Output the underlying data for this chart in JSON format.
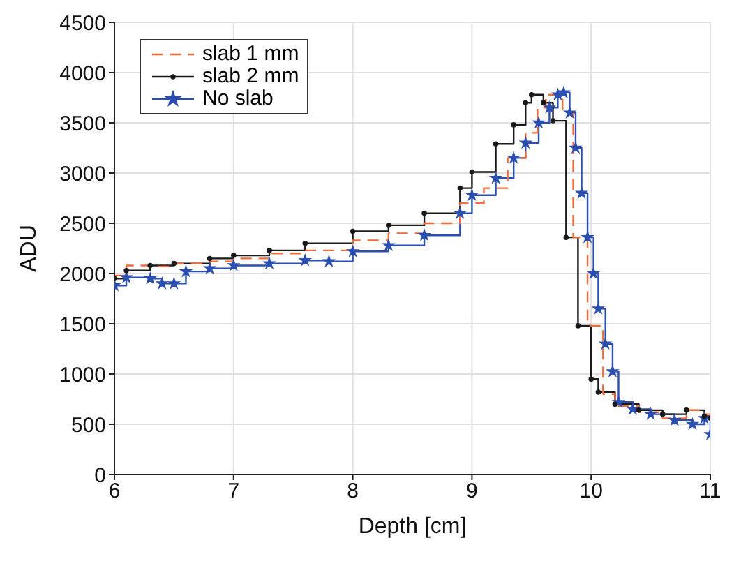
{
  "chart_data": {
    "type": "step",
    "xlabel": "Depth [cm]",
    "ylabel": "ADU",
    "xlim": [
      6,
      11
    ],
    "xticks": [
      6,
      7,
      8,
      9,
      10,
      11
    ],
    "ylim": [
      0,
      4500
    ],
    "yticks": [
      0,
      500,
      1000,
      1500,
      2000,
      2500,
      3000,
      3500,
      4000,
      4500
    ],
    "grid": true,
    "legend": "top left",
    "series": [
      {
        "name": "slab 1 mm",
        "color": "#f26b3a",
        "line_style": "dashed",
        "marker": "none",
        "x": [
          6,
          6.1,
          6.3,
          6.5,
          6.8,
          7,
          7.3,
          7.6,
          8,
          8.3,
          8.6,
          8.9,
          9.1,
          9.3,
          9.45,
          9.55,
          9.62,
          9.7,
          9.76,
          9.85,
          9.97,
          10.1,
          10.2,
          10.4,
          10.6,
          10.8,
          10.95,
          11
        ],
        "values": [
          1980,
          2080,
          2070,
          2100,
          2120,
          2150,
          2200,
          2230,
          2330,
          2400,
          2500,
          2700,
          2850,
          3150,
          3400,
          3650,
          3780,
          3780,
          3600,
          2360,
          1480,
          800,
          680,
          620,
          560,
          640,
          600,
          560
        ]
      },
      {
        "name": "slab 2 mm",
        "color": "#1a1a1a",
        "line_style": "solid",
        "marker": "circle",
        "x": [
          6,
          6.1,
          6.3,
          6.5,
          6.8,
          7,
          7.3,
          7.6,
          8,
          8.3,
          8.6,
          8.9,
          9,
          9.2,
          9.35,
          9.45,
          9.5,
          9.6,
          9.68,
          9.79,
          9.89,
          10,
          10.06,
          10.2,
          10.4,
          10.6,
          10.8,
          10.95,
          11
        ],
        "values": [
          1950,
          2030,
          2080,
          2100,
          2150,
          2180,
          2230,
          2300,
          2420,
          2480,
          2600,
          2850,
          3010,
          3290,
          3480,
          3700,
          3780,
          3700,
          3520,
          2360,
          1480,
          950,
          820,
          700,
          640,
          600,
          640,
          580,
          560
        ]
      },
      {
        "name": "No slab",
        "color": "#2a4fb0",
        "line_style": "solid",
        "marker": "star",
        "x": [
          6,
          6.1,
          6.3,
          6.4,
          6.5,
          6.6,
          6.8,
          7,
          7.3,
          7.6,
          7.8,
          8,
          8.3,
          8.6,
          8.9,
          9,
          9.2,
          9.35,
          9.45,
          9.56,
          9.65,
          9.72,
          9.77,
          9.82,
          9.87,
          9.92,
          9.97,
          10.02,
          10.06,
          10.12,
          10.18,
          10.23,
          10.35,
          10.5,
          10.7,
          10.85,
          10.95,
          11
        ],
        "values": [
          1880,
          1960,
          1950,
          1900,
          1900,
          2020,
          2050,
          2080,
          2100,
          2130,
          2120,
          2220,
          2280,
          2380,
          2600,
          2780,
          2950,
          3150,
          3300,
          3500,
          3650,
          3780,
          3800,
          3600,
          3250,
          2800,
          2360,
          2000,
          1650,
          1300,
          1025,
          720,
          650,
          600,
          540,
          500,
          560,
          400
        ]
      }
    ]
  }
}
